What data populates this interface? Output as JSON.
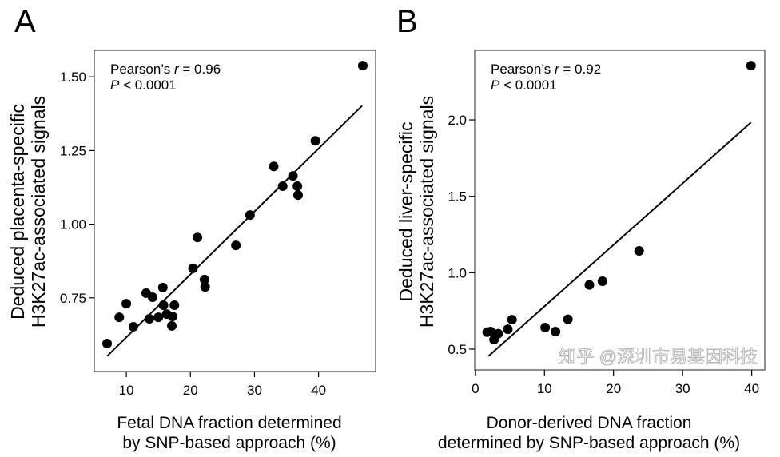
{
  "chart_data": [
    {
      "type": "scatter",
      "panel_label": "A",
      "xlabel": [
        "Fetal DNA fraction determined",
        "by SNP-based approach (%)"
      ],
      "ylabel": [
        "Deduced placenta-specific",
        "H3K27ac-associated signals"
      ],
      "xlim": [
        5,
        48.9
      ],
      "ylim": [
        0.5,
        1.59
      ],
      "xticks": [
        10,
        20,
        30,
        40
      ],
      "xtick_labels": [
        "10",
        "20",
        "30",
        "40"
      ],
      "yticks": [
        0.75,
        1.0,
        1.25,
        1.5
      ],
      "ytick_labels": [
        "0.75",
        "1.00",
        "1.25",
        "1.50"
      ],
      "annotation": {
        "r_prefix": "Pearson’s ",
        "r_symbol": "r",
        "r_value": " = 0.96",
        "p_symbol": "P",
        "p_value": " < 0.0001"
      },
      "grid": false,
      "points": [
        [
          46.9,
          1.538
        ],
        [
          39.5,
          1.283
        ],
        [
          33.0,
          1.196
        ],
        [
          36.0,
          1.164
        ],
        [
          34.4,
          1.129
        ],
        [
          36.7,
          1.129
        ],
        [
          36.8,
          1.099
        ],
        [
          29.3,
          1.031
        ],
        [
          21.1,
          0.955
        ],
        [
          27.1,
          0.928
        ],
        [
          20.4,
          0.85
        ],
        [
          22.2,
          0.812
        ],
        [
          22.3,
          0.787
        ],
        [
          15.7,
          0.785
        ],
        [
          13.1,
          0.766
        ],
        [
          14.1,
          0.752
        ],
        [
          10.0,
          0.73
        ],
        [
          15.8,
          0.725
        ],
        [
          17.5,
          0.725
        ],
        [
          8.9,
          0.684
        ],
        [
          13.6,
          0.679
        ],
        [
          15.0,
          0.684
        ],
        [
          16.3,
          0.695
        ],
        [
          17.2,
          0.687
        ],
        [
          11.1,
          0.652
        ],
        [
          17.1,
          0.655
        ],
        [
          7.0,
          0.595
        ]
      ],
      "fit_line": [
        [
          7.0,
          0.552
        ],
        [
          46.8,
          1.402
        ]
      ]
    },
    {
      "type": "scatter",
      "panel_label": "B",
      "xlabel": [
        "Donor-derived DNA fraction",
        "determined by SNP-based approach (%)"
      ],
      "ylabel": [
        "Deduced liver-specific",
        "H3K27ac-associated signals"
      ],
      "xlim": [
        -0.1,
        41.9
      ],
      "ylim": [
        0.364,
        2.455
      ],
      "xticks": [
        0,
        10,
        20,
        30,
        40
      ],
      "xtick_labels": [
        "0",
        "10",
        "20",
        "30",
        "40"
      ],
      "yticks": [
        0.5,
        1.0,
        1.5,
        2.0
      ],
      "ytick_labels": [
        "0.5",
        "1.0",
        "1.5",
        "2.0"
      ],
      "annotation": {
        "r_prefix": "Pearson’s ",
        "r_symbol": "r",
        "r_value": " = 0.92",
        "p_symbol": "P",
        "p_value": " < 0.0001"
      },
      "grid": false,
      "points": [
        [
          39.9,
          2.355
        ],
        [
          23.7,
          1.143
        ],
        [
          16.5,
          0.92
        ],
        [
          18.4,
          0.944
        ],
        [
          13.4,
          0.695
        ],
        [
          10.1,
          0.641
        ],
        [
          11.6,
          0.615
        ],
        [
          5.3,
          0.693
        ],
        [
          4.7,
          0.63
        ],
        [
          3.3,
          0.601
        ],
        [
          1.7,
          0.611
        ],
        [
          2.2,
          0.615
        ],
        [
          2.7,
          0.562
        ]
      ],
      "fit_line": [
        [
          1.9,
          0.454
        ],
        [
          39.9,
          1.983
        ]
      ]
    }
  ],
  "watermark": "知乎 @深圳市易基因科技",
  "colors": {
    "points": "#000000",
    "line": "#000000",
    "frame": "#555555"
  }
}
